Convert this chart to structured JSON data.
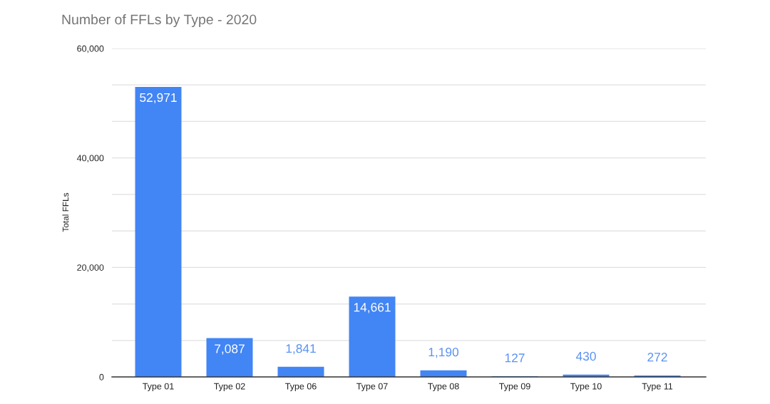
{
  "chart_data": {
    "type": "bar",
    "title": "Number of FFLs by Type - 2020",
    "ylabel": "Total FFLs",
    "categories": [
      "Type 01",
      "Type 02",
      "Type 06",
      "Type 07",
      "Type 08",
      "Type 09",
      "Type 10",
      "Type 11"
    ],
    "values": [
      52971,
      7087,
      1841,
      14661,
      1190,
      127,
      430,
      272
    ],
    "value_labels": [
      "52,971",
      "7,087",
      "1,841",
      "14,661",
      "1,190",
      "127",
      "430",
      "272"
    ],
    "color": "#4285f4",
    "ylim": [
      0,
      60000
    ],
    "yticks": [
      0,
      {
        "value": 6666.67,
        "label": null
      },
      {
        "value": 13333.33,
        "label": null
      },
      {
        "value": 20000,
        "label": "20,000"
      },
      {
        "value": 26666.67,
        "label": null
      },
      {
        "value": 33333.33,
        "label": null
      },
      {
        "value": 40000,
        "label": "40,000"
      },
      {
        "value": 46666.67,
        "label": null
      },
      {
        "value": 53333.33,
        "label": null
      },
      {
        "value": 60000,
        "label": "60,000"
      }
    ],
    "grid": "y",
    "legend": false
  }
}
